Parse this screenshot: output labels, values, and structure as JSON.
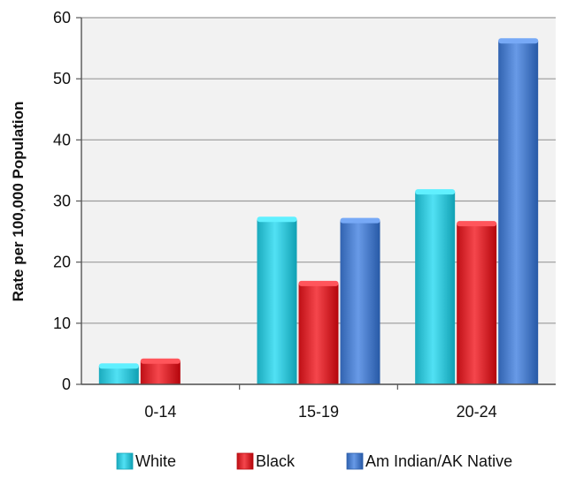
{
  "chart_data": {
    "type": "bar",
    "title": "",
    "xlabel": "",
    "ylabel": "Rate per 100,000 Population",
    "categories": [
      "0-14",
      "15-19",
      "20-24"
    ],
    "ylim": [
      0,
      60
    ],
    "yticks": [
      0,
      10,
      20,
      30,
      40,
      50,
      60
    ],
    "ytick_labels": [
      "0",
      "10",
      "20",
      "30",
      "40",
      "50",
      "60"
    ],
    "grid": true,
    "legend_position": "bottom",
    "series": [
      {
        "name": "White",
        "color": "#33c3d6",
        "values": [
          3,
          27,
          31.5
        ]
      },
      {
        "name": "Black",
        "color": "#d7282e",
        "values": [
          3.8,
          16.5,
          26.3
        ]
      },
      {
        "name": "Am Indian/AK Native",
        "color": "#4a7cc9",
        "values": [
          null,
          26.8,
          56.2
        ]
      }
    ]
  }
}
